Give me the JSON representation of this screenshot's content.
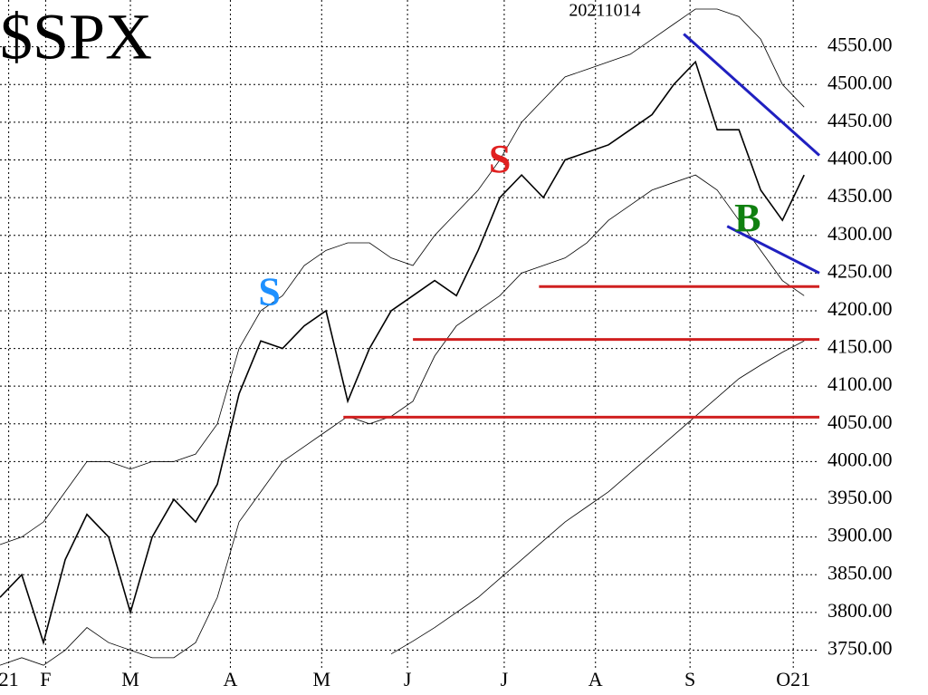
{
  "chart_data": {
    "type": "line",
    "title": "$SPX",
    "subtitle": "20211014",
    "xlim": [
      0,
      37.7
    ],
    "ylim": [
      3723,
      4612
    ],
    "grid": true,
    "xticks": [
      {
        "value": 0.4,
        "label": "21"
      },
      {
        "value": 2.1,
        "label": "F"
      },
      {
        "value": 6,
        "label": "M"
      },
      {
        "value": 10.6,
        "label": "A"
      },
      {
        "value": 14.8,
        "label": "M"
      },
      {
        "value": 18.75,
        "label": "J"
      },
      {
        "value": 23.2,
        "label": "J"
      },
      {
        "value": 27.4,
        "label": "A"
      },
      {
        "value": 31.75,
        "label": "S"
      },
      {
        "value": 36.5,
        "label": "O21"
      }
    ],
    "yticks": [
      {
        "value": 3750,
        "label": "3750.00"
      },
      {
        "value": 3800,
        "label": "3800.00"
      },
      {
        "value": 3850,
        "label": "3850.00"
      },
      {
        "value": 3900,
        "label": "3900.00"
      },
      {
        "value": 3950,
        "label": "3950.00"
      },
      {
        "value": 4000,
        "label": "4000.00"
      },
      {
        "value": 4050,
        "label": "4050.00"
      },
      {
        "value": 4100,
        "label": "4100.00"
      },
      {
        "value": 4150,
        "label": "4150.00"
      },
      {
        "value": 4200,
        "label": "4200.00"
      },
      {
        "value": 4250,
        "label": "4250.00"
      },
      {
        "value": 4300,
        "label": "4300.00"
      },
      {
        "value": 4350,
        "label": "4350.00"
      },
      {
        "value": 4400,
        "label": "4400.00"
      },
      {
        "value": 4450,
        "label": "4450.00"
      },
      {
        "value": 4500,
        "label": "4500.00"
      },
      {
        "value": 4550,
        "label": "4550.00"
      }
    ],
    "x": [
      0,
      1,
      2,
      3,
      4,
      5,
      6,
      7,
      8,
      9,
      10,
      11,
      12,
      13,
      14,
      15,
      16,
      17,
      18,
      19,
      20,
      21,
      22,
      23,
      24,
      25,
      26,
      27,
      28,
      29,
      30,
      31,
      32,
      33,
      34,
      35,
      36,
      37
    ],
    "series": [
      {
        "color": "#000000",
        "width": 1.6,
        "values": [
          3820,
          3850,
          3760,
          3870,
          3930,
          3900,
          3800,
          3900,
          3950,
          3920,
          3970,
          4090,
          4160,
          4150,
          4180,
          4200,
          4080,
          4150,
          4200,
          4220,
          4240,
          4220,
          4280,
          4350,
          4380,
          4350,
          4400,
          4410,
          4420,
          4440,
          4460,
          4500,
          4530,
          4440,
          4440,
          4360,
          4320,
          4380
        ]
      },
      {
        "color": "#000000",
        "width": 0.8,
        "values": [
          3890,
          3900,
          3920,
          3960,
          4000,
          4000,
          3990,
          4000,
          4000,
          4010,
          4050,
          4150,
          4200,
          4220,
          4260,
          4280,
          4290,
          4290,
          4270,
          4260,
          4300,
          4330,
          4360,
          4400,
          4450,
          4480,
          4510,
          4520,
          4530,
          4540,
          4560,
          4580,
          4600,
          4600,
          4590,
          4560,
          4500,
          4470
        ]
      },
      {
        "color": "#000000",
        "width": 0.8,
        "values": [
          3730,
          3740,
          3730,
          3750,
          3780,
          3760,
          3750,
          3740,
          3740,
          3760,
          3820,
          3920,
          3960,
          4000,
          4020,
          4040,
          4060,
          4050,
          4060,
          4080,
          4140,
          4180,
          4200,
          4220,
          4250,
          4260,
          4270,
          4290,
          4320,
          4340,
          4360,
          4370,
          4380,
          4360,
          4320,
          4280,
          4240,
          4220
        ]
      },
      {
        "color": "#000000",
        "width": 0.8,
        "values": [
          null,
          null,
          null,
          null,
          null,
          null,
          null,
          null,
          null,
          null,
          null,
          null,
          null,
          null,
          null,
          null,
          null,
          null,
          3745,
          3762,
          3780,
          3800,
          3820,
          3845,
          3870,
          3895,
          3920,
          3940,
          3960,
          3985,
          4010,
          4035,
          4060,
          4085,
          4110,
          4128,
          4145,
          4160
        ]
      }
    ],
    "lines": [
      {
        "color": "#2020c0",
        "x": [
          31.46,
          37.7
        ],
        "values": [
          4567,
          4406
        ]
      },
      {
        "color": "#2020c0",
        "x": [
          33.46,
          37.7
        ],
        "values": [
          4312,
          4250
        ]
      },
      {
        "color": "#d02020",
        "x": [
          24.8,
          37.7
        ],
        "values": [
          4232,
          4232
        ]
      },
      {
        "color": "#d02020",
        "x": [
          19,
          37.7
        ],
        "values": [
          4162,
          4162
        ]
      },
      {
        "color": "#d02020",
        "x": [
          15.8,
          37.7
        ],
        "values": [
          4059,
          4059
        ]
      }
    ],
    "annotations": [
      {
        "text": "S",
        "color": "#1e90ff",
        "x": 12.4,
        "y": 4220
      },
      {
        "text": "S",
        "color": "#e02020",
        "x": 23,
        "y": 4396
      },
      {
        "text": "B",
        "color": "#108010",
        "x": 34.4,
        "y": 4318
      }
    ]
  }
}
